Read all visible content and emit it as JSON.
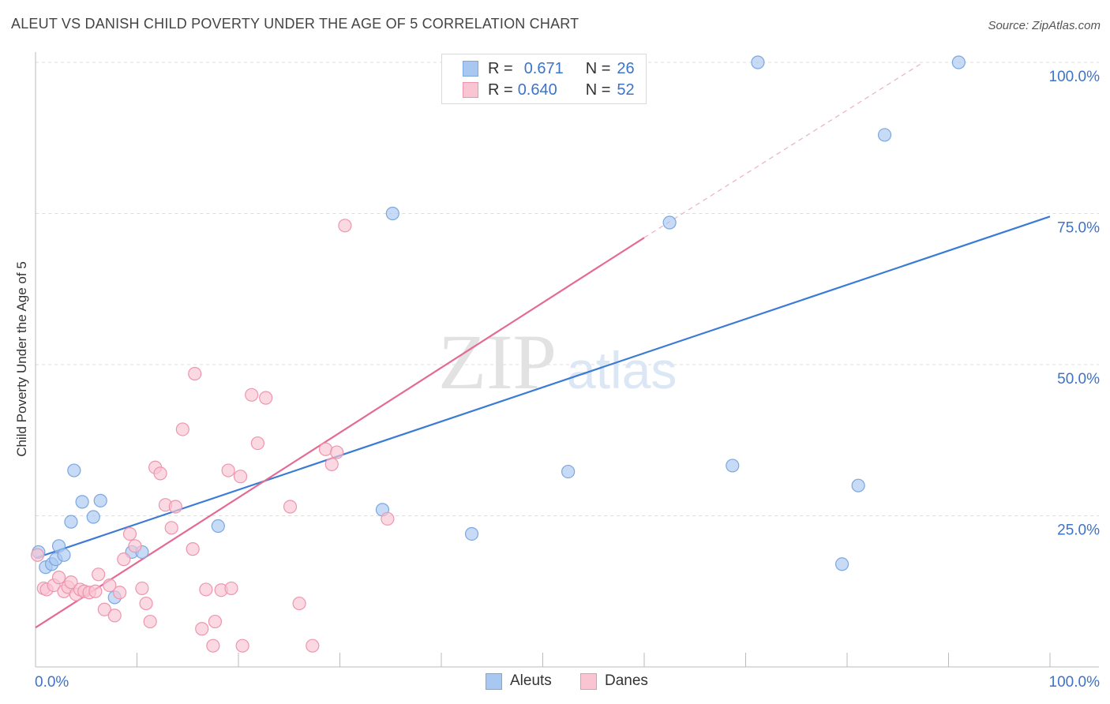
{
  "title": "ALEUT VS DANISH CHILD POVERTY UNDER THE AGE OF 5 CORRELATION CHART",
  "source": "Source: ZipAtlas.com",
  "watermark": {
    "zip": "ZIP",
    "atlas": "atlas"
  },
  "legend": {
    "r_label": "R =",
    "n_label": "N =",
    "rows": [
      {
        "r": "0.671",
        "n": "26",
        "color": "#a9c8f1",
        "border": "#7aa7e0"
      },
      {
        "r": "0.640",
        "n": "52",
        "color": "#f9c5d3",
        "border": "#ee95ae"
      }
    ]
  },
  "bottom_legend": [
    {
      "label": "Aleuts",
      "color": "#a9c8f1",
      "border": "#7aa7e0"
    },
    {
      "label": "Danes",
      "color": "#f9c5d3",
      "border": "#ee95ae"
    }
  ],
  "chart_data": {
    "type": "scatter",
    "title": "ALEUT VS DANISH CHILD POVERTY UNDER THE AGE OF 5 CORRELATION CHART",
    "xlabel": "",
    "ylabel": "Child Poverty Under the Age of 5",
    "xlim": [
      0,
      100
    ],
    "ylim": [
      0,
      100
    ],
    "x_tick_labels": [
      "0.0%",
      "100.0%"
    ],
    "y_ticks": [
      25,
      50,
      75,
      100
    ],
    "y_tick_labels": [
      "25.0%",
      "50.0%",
      "75.0%",
      "100.0%"
    ],
    "grid": true,
    "series": [
      {
        "name": "Aleuts",
        "color": "#a9c8f1",
        "stroke": "#7aa7e0",
        "points": [
          [
            0.3,
            19.0
          ],
          [
            1.0,
            16.5
          ],
          [
            1.6,
            17.0
          ],
          [
            2.0,
            17.8
          ],
          [
            2.3,
            20.0
          ],
          [
            2.8,
            18.5
          ],
          [
            3.5,
            24.0
          ],
          [
            3.8,
            32.5
          ],
          [
            4.6,
            27.3
          ],
          [
            5.7,
            24.8
          ],
          [
            6.4,
            27.5
          ],
          [
            7.8,
            11.5
          ],
          [
            9.5,
            19.0
          ],
          [
            10.5,
            19.0
          ],
          [
            18.0,
            23.3
          ],
          [
            34.2,
            26.0
          ],
          [
            35.2,
            75.0
          ],
          [
            43.0,
            22.0
          ],
          [
            52.5,
            32.3
          ],
          [
            62.5,
            73.5
          ],
          [
            68.7,
            33.3
          ],
          [
            71.2,
            100.0
          ],
          [
            79.5,
            17.0
          ],
          [
            81.1,
            30.0
          ],
          [
            83.7,
            88.0
          ],
          [
            91.0,
            100.0
          ]
        ],
        "trend": {
          "x0": 0,
          "y0": 18.0,
          "x1": 100,
          "y1": 74.5
        }
      },
      {
        "name": "Danes",
        "color": "#f9c5d3",
        "stroke": "#ee95ae",
        "points": [
          [
            0.2,
            18.5
          ],
          [
            0.8,
            13.0
          ],
          [
            1.1,
            12.8
          ],
          [
            1.8,
            13.5
          ],
          [
            2.3,
            14.8
          ],
          [
            2.8,
            12.5
          ],
          [
            3.2,
            13.2
          ],
          [
            3.5,
            14.0
          ],
          [
            4.0,
            12.0
          ],
          [
            4.4,
            12.8
          ],
          [
            4.8,
            12.5
          ],
          [
            5.3,
            12.3
          ],
          [
            5.9,
            12.5
          ],
          [
            6.2,
            15.3
          ],
          [
            6.8,
            9.5
          ],
          [
            7.3,
            13.5
          ],
          [
            7.8,
            8.5
          ],
          [
            8.3,
            12.3
          ],
          [
            8.7,
            17.8
          ],
          [
            9.3,
            22.0
          ],
          [
            9.8,
            20.0
          ],
          [
            10.5,
            13.0
          ],
          [
            10.9,
            10.5
          ],
          [
            11.3,
            7.5
          ],
          [
            11.8,
            33.0
          ],
          [
            12.3,
            32.0
          ],
          [
            12.8,
            26.8
          ],
          [
            13.4,
            23.0
          ],
          [
            13.8,
            26.5
          ],
          [
            14.5,
            39.3
          ],
          [
            15.5,
            19.5
          ],
          [
            15.7,
            48.5
          ],
          [
            16.4,
            6.3
          ],
          [
            16.8,
            12.8
          ],
          [
            17.5,
            3.5
          ],
          [
            17.7,
            7.5
          ],
          [
            18.3,
            12.7
          ],
          [
            19.0,
            32.5
          ],
          [
            19.3,
            13.0
          ],
          [
            20.2,
            31.5
          ],
          [
            20.4,
            3.5
          ],
          [
            21.3,
            45.0
          ],
          [
            21.9,
            37.0
          ],
          [
            22.7,
            44.5
          ],
          [
            25.1,
            26.5
          ],
          [
            26.0,
            10.5
          ],
          [
            27.3,
            3.5
          ],
          [
            28.6,
            36.0
          ],
          [
            29.2,
            33.5
          ],
          [
            29.7,
            35.5
          ],
          [
            30.5,
            73.0
          ],
          [
            34.7,
            24.5
          ]
        ],
        "trend": {
          "x0": 0,
          "y0": 6.5,
          "x1": 60,
          "y1": 71.0
        },
        "trend_dashed": {
          "x0": 60,
          "y0": 71.0,
          "x1": 87.5,
          "y1": 100.0
        }
      }
    ]
  }
}
